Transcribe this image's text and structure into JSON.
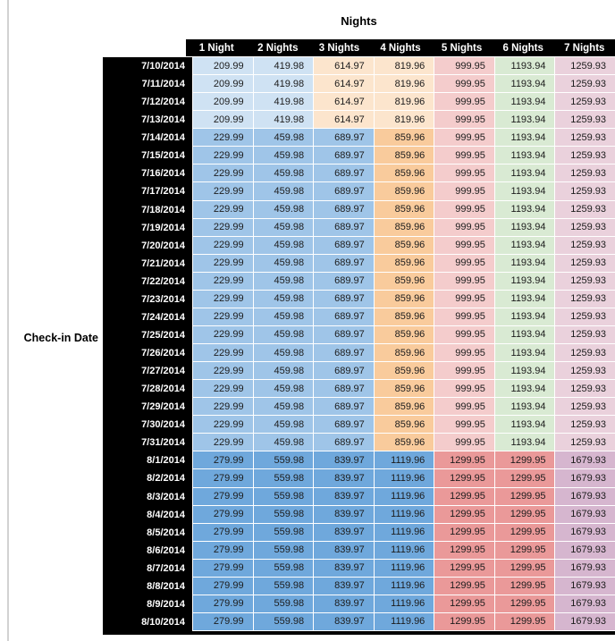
{
  "palette": {
    "header_bg": "#000000",
    "header_text": "#ffffff",
    "blue_light": "#CFE2F3",
    "blue_mid": "#9FC5E8",
    "blue_dark": "#6FA8DC",
    "orange_light": "#FCE5CD",
    "orange_mid": "#F9CB9C",
    "red_light": "#F4CCCC",
    "red_mid": "#EA9999",
    "green_light": "#D9EAD3",
    "magenta_light": "#EAD1DC",
    "purple_mid": "#D6B6CF"
  },
  "chart_data": {
    "type": "table",
    "title": "Nights",
    "row_axis_label": "Check-in Date",
    "columns": [
      "1 Night",
      "2 Nights",
      "3 Nights",
      "4 Nights",
      "5 Nights",
      "6 Nights",
      "7 Nights"
    ],
    "sections": [
      {
        "dates": [
          "7/10/2014",
          "7/11/2014",
          "7/12/2014",
          "7/13/2014"
        ],
        "values": [
          "209.99",
          "419.98",
          "614.97",
          "819.96",
          "999.95",
          "1193.94",
          "1259.93"
        ],
        "cell_colors": [
          "blue_light",
          "blue_light",
          "orange_light",
          "orange_light",
          "red_light",
          "green_light",
          "magenta_light"
        ]
      },
      {
        "dates": [
          "7/14/2014",
          "7/15/2014",
          "7/16/2014",
          "7/17/2014",
          "7/18/2014",
          "7/19/2014",
          "7/20/2014",
          "7/21/2014",
          "7/22/2014",
          "7/23/2014",
          "7/24/2014",
          "7/25/2014",
          "7/26/2014",
          "7/27/2014",
          "7/28/2014",
          "7/29/2014",
          "7/30/2014",
          "7/31/2014"
        ],
        "values": [
          "229.99",
          "459.98",
          "689.97",
          "859.96",
          "999.95",
          "1193.94",
          "1259.93"
        ],
        "cell_colors": [
          "blue_mid",
          "blue_mid",
          "blue_mid",
          "orange_mid",
          "red_light",
          "green_light",
          "magenta_light"
        ]
      },
      {
        "dates": [
          "8/1/2014",
          "8/2/2014",
          "8/3/2014",
          "8/4/2014",
          "8/5/2014",
          "8/6/2014",
          "8/7/2014",
          "8/8/2014",
          "8/9/2014",
          "8/10/2014"
        ],
        "values": [
          "279.99",
          "559.98",
          "839.97",
          "1119.96",
          "1299.95",
          "1299.95",
          "1679.93"
        ],
        "cell_colors": [
          "blue_dark",
          "blue_dark",
          "blue_dark",
          "blue_dark",
          "red_mid",
          "red_mid",
          "purple_mid"
        ]
      }
    ]
  }
}
